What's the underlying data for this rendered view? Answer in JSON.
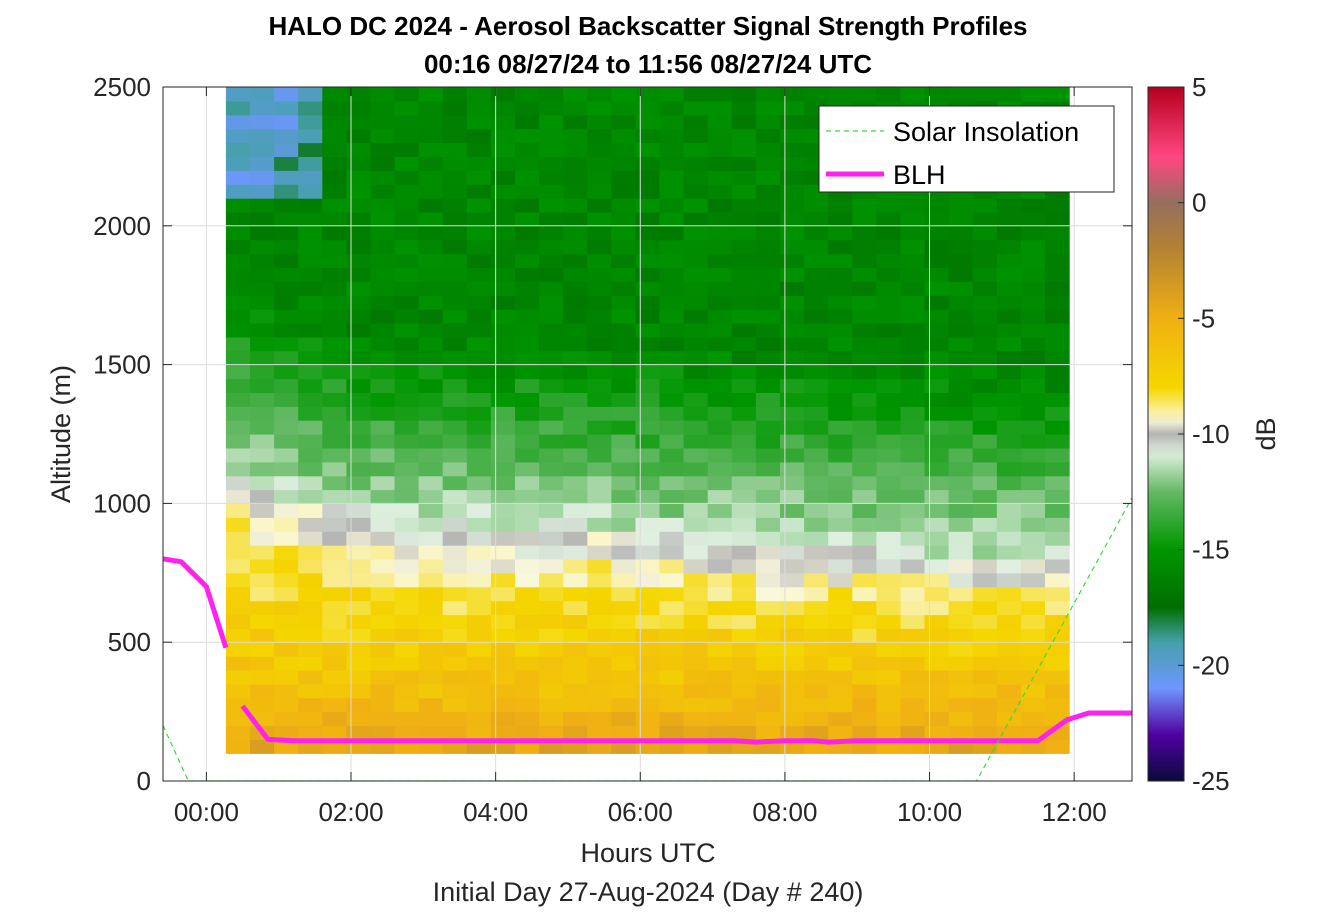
{
  "chart_data": {
    "type": "heatmap",
    "title": "HALO DC 2024 - Aerosol Backscatter Signal Strength Profiles",
    "subtitle": "00:16 08/27/24 to 11:56 08/27/24  UTC",
    "xlabel": "Hours UTC",
    "xlabel2": "Initial Day 27-Aug-2024 (Day # 240)",
    "ylabel": "Altitude (m)",
    "colorbar_label": "dB",
    "xlim": [
      -0.6,
      12.8
    ],
    "ylim": [
      0,
      2500
    ],
    "x_ticks": [
      {
        "value": 0,
        "label": "00:00"
      },
      {
        "value": 2,
        "label": "02:00"
      },
      {
        "value": 4,
        "label": "04:00"
      },
      {
        "value": 6,
        "label": "06:00"
      },
      {
        "value": 8,
        "label": "08:00"
      },
      {
        "value": 10,
        "label": "10:00"
      },
      {
        "value": 12,
        "label": "12:00"
      }
    ],
    "y_ticks": [
      {
        "value": 0,
        "label": "0"
      },
      {
        "value": 500,
        "label": "500"
      },
      {
        "value": 1000,
        "label": "1000"
      },
      {
        "value": 1500,
        "label": "1500"
      },
      {
        "value": 2000,
        "label": "2000"
      },
      {
        "value": 2500,
        "label": "2500"
      }
    ],
    "colorbar_ticks": [
      {
        "value": 5,
        "label": "5"
      },
      {
        "value": 0,
        "label": "0"
      },
      {
        "value": -5,
        "label": "-5"
      },
      {
        "value": -10,
        "label": "-10"
      },
      {
        "value": -15,
        "label": "-15"
      },
      {
        "value": -20,
        "label": "-20"
      },
      {
        "value": -25,
        "label": "-25"
      }
    ],
    "clim": [
      -25,
      5
    ],
    "grid": true,
    "legend": {
      "placement": "top-right",
      "entries": [
        {
          "name": "Solar Insolation",
          "color": "#33dd33",
          "style": "dashed"
        },
        {
          "name": "BLH",
          "color": "#ff22ee",
          "style": "solid"
        }
      ]
    },
    "heatmap": {
      "x_start": 0.27,
      "x_end": 11.93,
      "n_time_bins": 35,
      "y_bottom": 100,
      "y_top": 2500,
      "layer_model": {
        "surface_db": -4.3,
        "mixed_layer_db": -6.8,
        "entrainment_db": -10,
        "free_troposphere_db": -16,
        "mixed_layer_top_m": [
          1000,
          850,
          780,
          700
        ],
        "mixed_layer_top_hours": [
          0.3,
          2.0,
          7.0,
          11.9
        ]
      }
    },
    "series": [
      {
        "name": "BLH",
        "color": "#ff22ee",
        "segments": [
          {
            "x": [
              -0.6,
              -0.35,
              0.0,
              0.27
            ],
            "y": [
              800,
              790,
              700,
              480
            ]
          },
          {
            "x": [
              0.5,
              0.85,
              1.2,
              2.0,
              4.0,
              6.0,
              7.3,
              7.6,
              8.0,
              8.4,
              8.6,
              9.0,
              10.0,
              11.0,
              11.5,
              11.9,
              12.2,
              12.8
            ],
            "y": [
              270,
              150,
              145,
              145,
              145,
              145,
              145,
              140,
              145,
              145,
              140,
              145,
              145,
              145,
              145,
              220,
              245,
              245
            ]
          }
        ]
      },
      {
        "name": "Solar Insolation",
        "color": "#33dd33",
        "x": [
          -0.6,
          -0.25,
          10.65,
          12.8
        ],
        "y": [
          200,
          0,
          0,
          1020
        ]
      }
    ]
  }
}
